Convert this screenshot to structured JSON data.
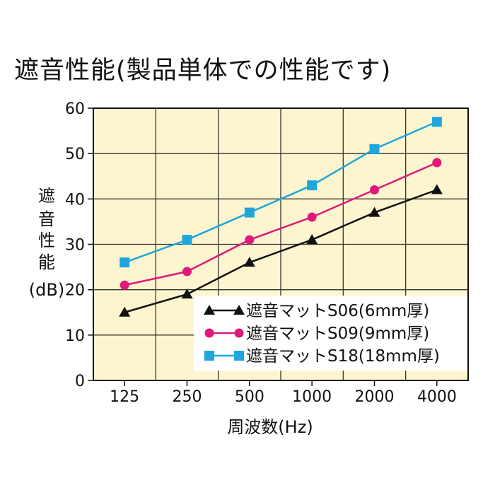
{
  "title": "遮音性能(製品単体での性能です)",
  "chart_data": {
    "type": "line",
    "title": "遮音性能(製品単体での性能です)",
    "xlabel": "周波数(Hz)",
    "ylabel_lines": [
      "遮",
      "音",
      "性",
      "能",
      "(dB)"
    ],
    "categories": [
      "125",
      "250",
      "500",
      "1000",
      "2000",
      "4000"
    ],
    "yticks": [
      0,
      10,
      20,
      30,
      40,
      50,
      60
    ],
    "ylim": [
      0,
      60
    ],
    "grid": true,
    "legend_position": "bottom-right",
    "background": "#fdf5cf",
    "series": [
      {
        "name": "遮音マットS06(6mm厚)",
        "marker": "triangle",
        "color": "#111111",
        "values": [
          15,
          19,
          26,
          31,
          37,
          42
        ]
      },
      {
        "name": "遮音マットS09(9mm厚)",
        "marker": "circle",
        "color": "#e0197a",
        "values": [
          21,
          24,
          31,
          36,
          42,
          48
        ]
      },
      {
        "name": "遮音マットS18(18mm厚)",
        "marker": "square",
        "color": "#1fa6dc",
        "values": [
          26,
          31,
          37,
          43,
          51,
          57
        ]
      }
    ]
  }
}
